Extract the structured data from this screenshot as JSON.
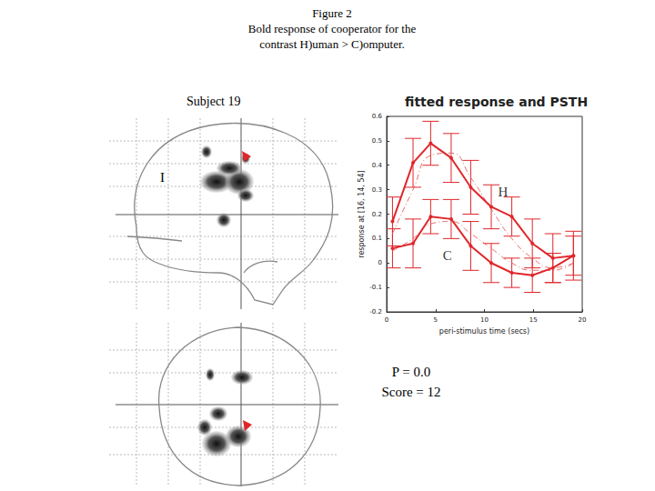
{
  "header": {
    "lines": [
      "Figure 2",
      "Bold response of cooperator for the",
      "contrast  H)uman > C)omputer."
    ]
  },
  "subject": "Subject 19",
  "brain_label": "I",
  "stats": [
    "P = 0.0",
    "Score = 12"
  ],
  "chart_data": {
    "type": "line",
    "title": "fitted response and PSTH",
    "x_label": "peri-stimulus time (secs)",
    "y_label": "response at [16, 14, 54]",
    "xlim": [
      0,
      20
    ],
    "xticks": [
      0,
      5,
      10,
      15,
      20
    ],
    "ylim": [
      -0.2,
      0.6
    ],
    "yticks": [
      -0.2,
      -0.1,
      0,
      0.1,
      0.2,
      0.3,
      0.4,
      0.5,
      0.6
    ],
    "grid": false,
    "x": [
      0.6,
      2.7,
      4.5,
      6.6,
      8.6,
      10.7,
      12.8,
      14.9,
      17.0,
      19.1
    ],
    "series": [
      {
        "color": "#e0262a",
        "marker": "circle",
        "line_style": "solid",
        "values": [
          0.17,
          0.41,
          0.49,
          0.43,
          0.31,
          0.23,
          0.19,
          0.08,
          0.02,
          0.03
        ],
        "errors": [
          0.1,
          0.1,
          0.09,
          0.1,
          0.11,
          0.09,
          0.08,
          0.1,
          0.1,
          0.1
        ]
      },
      {
        "color": "#e0262a",
        "marker": "circle",
        "line_style": "solid",
        "values": [
          0.06,
          0.08,
          0.19,
          0.18,
          0.07,
          0.0,
          -0.04,
          -0.05,
          -0.02,
          0.03
        ],
        "errors": [
          0.08,
          0.1,
          0.07,
          0.08,
          0.1,
          0.08,
          0.06,
          0.07,
          0.06,
          0.08
        ]
      },
      {
        "color": "#e86a6c",
        "marker": "none",
        "line_style": "dashed",
        "values": [
          0.12,
          0.3,
          0.44,
          0.45,
          0.35,
          0.22,
          0.1,
          0.02,
          -0.02,
          0.0
        ]
      },
      {
        "color": "#e86a6c",
        "marker": "none",
        "line_style": "dashed",
        "values": [
          0.05,
          0.1,
          0.16,
          0.17,
          0.12,
          0.06,
          0.0,
          -0.03,
          -0.03,
          0.0
        ]
      }
    ],
    "annotations": [
      {
        "text": "H",
        "x": 11.9,
        "y": 0.29
      },
      {
        "text": "C",
        "x": 6.2,
        "y": 0.03
      }
    ]
  }
}
